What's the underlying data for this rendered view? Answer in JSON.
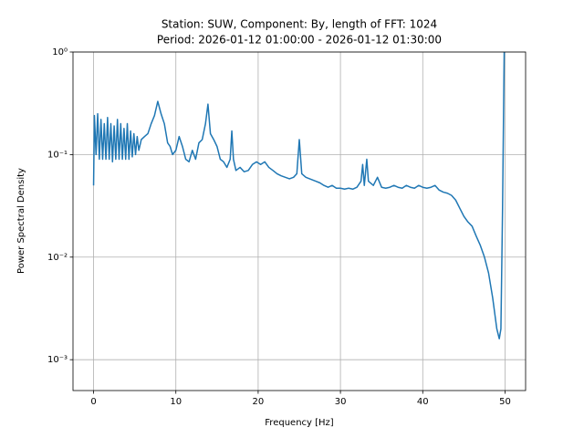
{
  "chart_data": {
    "type": "line",
    "title": "Station: SUW, Component: By, length of FFT: 1024",
    "subtitle": "Period: 2026-01-12 01:00:00 - 2026-01-12 01:30:00",
    "x_label": "Frequency [Hz]",
    "y_label": "Power Spectral Density",
    "log_y": true,
    "grid": true,
    "xlim": [
      -2.5,
      52.5
    ],
    "xticks": [
      0,
      10,
      20,
      30,
      40,
      50
    ],
    "ylim": [
      0.0005,
      1
    ],
    "yticks": [
      {
        "value": 0.001,
        "label": "10⁻³"
      },
      {
        "value": 0.01,
        "label": "10⁻²"
      },
      {
        "value": 0.1,
        "label": "10⁻¹"
      },
      {
        "value": 1,
        "label": "10⁰"
      }
    ],
    "x": [
      0,
      0.1,
      0.3,
      0.5,
      0.7,
      0.9,
      1.1,
      1.3,
      1.5,
      1.7,
      1.9,
      2.1,
      2.3,
      2.5,
      2.7,
      2.9,
      3.1,
      3.3,
      3.5,
      3.7,
      3.9,
      4.1,
      4.3,
      4.5,
      4.7,
      4.9,
      5.1,
      5.3,
      5.5,
      5.8,
      6.2,
      6.6,
      7.0,
      7.4,
      7.8,
      8.2,
      8.6,
      9.0,
      9.3,
      9.6,
      10.0,
      10.4,
      10.8,
      11.2,
      11.6,
      12.0,
      12.4,
      12.8,
      13.2,
      13.6,
      13.9,
      14.2,
      14.6,
      15.0,
      15.4,
      15.8,
      16.2,
      16.6,
      16.8,
      17.0,
      17.3,
      17.8,
      18.3,
      18.8,
      19.3,
      19.8,
      20.3,
      20.8,
      21.3,
      21.8,
      22.3,
      22.8,
      23.3,
      23.8,
      24.3,
      24.7,
      25.0,
      25.3,
      25.8,
      26.5,
      27.0,
      27.5,
      28.0,
      28.5,
      29.0,
      29.5,
      30.0,
      30.5,
      31.0,
      31.5,
      32.0,
      32.5,
      32.7,
      32.9,
      33.2,
      33.4,
      34.0,
      34.5,
      35.0,
      35.5,
      36.0,
      36.5,
      37.0,
      37.5,
      38.0,
      38.5,
      39.0,
      39.5,
      40.0,
      40.5,
      41.0,
      41.5,
      42.0,
      42.5,
      43.0,
      43.5,
      44.0,
      44.5,
      45.0,
      45.5,
      46.0,
      46.5,
      47.0,
      47.5,
      48.0,
      48.5,
      49.0,
      49.3,
      49.5,
      49.7,
      49.9,
      50.0
    ],
    "series": [
      {
        "name": "PSD",
        "color": "#1f77b4",
        "values": [
          0.05,
          0.24,
          0.1,
          0.25,
          0.09,
          0.22,
          0.09,
          0.2,
          0.09,
          0.23,
          0.09,
          0.2,
          0.085,
          0.19,
          0.09,
          0.22,
          0.09,
          0.2,
          0.09,
          0.18,
          0.09,
          0.2,
          0.09,
          0.17,
          0.095,
          0.16,
          0.1,
          0.15,
          0.11,
          0.14,
          0.15,
          0.16,
          0.2,
          0.24,
          0.33,
          0.25,
          0.2,
          0.13,
          0.12,
          0.1,
          0.11,
          0.15,
          0.12,
          0.09,
          0.085,
          0.11,
          0.09,
          0.13,
          0.14,
          0.2,
          0.31,
          0.16,
          0.14,
          0.12,
          0.09,
          0.085,
          0.075,
          0.09,
          0.17,
          0.09,
          0.07,
          0.075,
          0.068,
          0.07,
          0.08,
          0.085,
          0.08,
          0.085,
          0.075,
          0.07,
          0.065,
          0.062,
          0.06,
          0.058,
          0.06,
          0.065,
          0.14,
          0.065,
          0.06,
          0.057,
          0.055,
          0.053,
          0.05,
          0.048,
          0.05,
          0.047,
          0.047,
          0.046,
          0.047,
          0.046,
          0.048,
          0.055,
          0.08,
          0.05,
          0.09,
          0.055,
          0.05,
          0.06,
          0.048,
          0.047,
          0.048,
          0.05,
          0.048,
          0.047,
          0.05,
          0.048,
          0.047,
          0.05,
          0.048,
          0.047,
          0.048,
          0.05,
          0.045,
          0.043,
          0.042,
          0.04,
          0.036,
          0.03,
          0.025,
          0.022,
          0.02,
          0.016,
          0.013,
          0.01,
          0.007,
          0.004,
          0.002,
          0.0016,
          0.002,
          0.03,
          1.0,
          1.0
        ]
      }
    ]
  }
}
